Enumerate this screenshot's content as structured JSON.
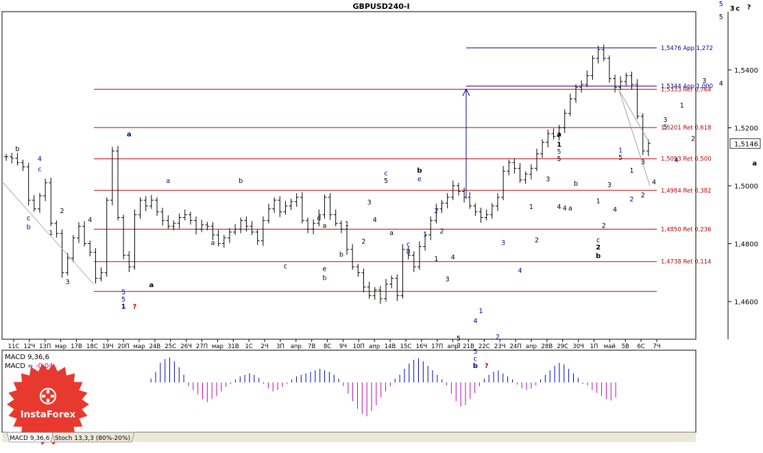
{
  "chart_data": {
    "type": "candlestick",
    "title": "GBPUSD240-I",
    "symbol": "GBPUSD",
    "timeframe": "H4",
    "ylim": [
      1.556,
      1.445
    ],
    "y_tick_labels": [
      "1,5400",
      "1,5200",
      "1,5000",
      "1,4800",
      "1,4600"
    ],
    "y_ticks": [
      1.54,
      1.52,
      1.5,
      1.48,
      1.46
    ],
    "current_price_label": "1,5146",
    "current_price": 1.5146,
    "x_tick_labels": [
      "11С",
      "12Ч",
      "13П",
      "мар",
      "17В",
      "18С",
      "19Ч",
      "20П",
      "мар",
      "24В",
      "25С",
      "26Ч",
      "27П",
      "мар",
      "31В",
      "1С",
      "2Ч",
      "3П",
      "апр",
      "7В",
      "8С",
      "9Ч",
      "10П",
      "апр",
      "14В",
      "15С",
      "16Ч",
      "17П",
      "апр",
      "21В",
      "22С",
      "23Ч",
      "24П",
      "апр",
      "28В",
      "29С",
      "30Ч",
      "1П",
      "май",
      "5В",
      "6С",
      "7Ч"
    ],
    "fibonacci_levels": [
      {
        "label": "1,5476 App 1,272",
        "price": 1.5476,
        "color": "#0000a0"
      },
      {
        "label": "1,5344 App 1,000",
        "price": 1.5344,
        "color": "#0000a0"
      },
      {
        "label": "1,5333 Ret 0,764",
        "price": 1.5333,
        "color": "#c00000"
      },
      {
        "label": "1,5201 Ret 0,618",
        "price": 1.5201,
        "color": "#c00000"
      },
      {
        "label": "1,5093 Ret 0,500",
        "price": 1.5093,
        "color": "#c00000"
      },
      {
        "label": "1,4984 Ret 0,382",
        "price": 1.4984,
        "color": "#c00000"
      },
      {
        "label": "1,4850 Ret 0,236",
        "price": 1.485,
        "color": "#c00000"
      },
      {
        "label": "1,4738 Ret 0,114",
        "price": 1.4738,
        "color": "#c00000"
      },
      {
        "price": 1.4635,
        "color": "#c00000"
      }
    ],
    "close_series": [
      1.51,
      1.5095,
      1.508,
      1.5065,
      1.495,
      1.492,
      1.4965,
      1.501,
      1.487,
      1.4835,
      1.47,
      1.475,
      1.482,
      1.486,
      1.48,
      1.477,
      1.468,
      1.47,
      1.495,
      1.512,
      1.489,
      1.476,
      1.472,
      1.49,
      1.495,
      1.493,
      1.495,
      1.491,
      1.488,
      1.486,
      1.487,
      1.489,
      1.49,
      1.488,
      1.485,
      1.4865,
      1.486,
      1.483,
      1.48,
      1.482,
      1.484,
      1.485,
      1.488,
      1.486,
      1.484,
      1.481,
      1.488,
      1.492,
      1.495,
      1.491,
      1.493,
      1.4945,
      1.496,
      1.488,
      1.485,
      1.487,
      1.49,
      1.496,
      1.49,
      1.487,
      1.485,
      1.478,
      1.472,
      1.47,
      1.465,
      1.462,
      1.464,
      1.461,
      1.466,
      1.468,
      1.462,
      1.478,
      1.476,
      1.472,
      1.479,
      1.483,
      1.488,
      1.492,
      1.494,
      1.496,
      1.5,
      1.498,
      1.496,
      1.493,
      1.491,
      1.489,
      1.49,
      1.493,
      1.496,
      1.505,
      1.508,
      1.506,
      1.502,
      1.504,
      1.506,
      1.511,
      1.515,
      1.518,
      1.517,
      1.52,
      1.525,
      1.53,
      1.534,
      1.535,
      1.538,
      1.544,
      1.547,
      1.544,
      1.537,
      1.534,
      1.536,
      1.538,
      1.535,
      1.524,
      1.512,
      1.5146
    ],
    "projection": [
      [
        1.5146,
        1.533,
        1.5
      ]
    ],
    "wave_labels": [
      {
        "text": "b",
        "color": "#000000",
        "price": 1.512,
        "bar": 2
      },
      {
        "text": "4",
        "color": "#0000a0",
        "price": 1.5085,
        "bar": 6
      },
      {
        "text": "c",
        "color": "#0000a0",
        "price": 1.505,
        "bar": 6
      },
      {
        "text": "c",
        "color": "#000000",
        "price": 1.488,
        "bar": 4
      },
      {
        "text": "b",
        "color": "#0000a0",
        "price": 1.485,
        "bar": 4
      },
      {
        "text": "1",
        "color": "#000000",
        "price": 1.483,
        "bar": 8
      },
      {
        "text": "2",
        "color": "#000000",
        "price": 1.4905,
        "bar": 10
      },
      {
        "text": "3",
        "color": "#000000",
        "price": 1.466,
        "bar": 11
      },
      {
        "text": "4",
        "color": "#000000",
        "price": 1.4875,
        "bar": 15
      },
      {
        "text": "a",
        "color": "#0000a0",
        "price": 1.517,
        "bar": 22,
        "bold": true
      },
      {
        "text": "5",
        "color": "#0000a0",
        "price": 1.4625,
        "bar": 21
      },
      {
        "text": "5",
        "color": "#0000a0",
        "price": 1.46,
        "bar": 21
      },
      {
        "text": "1",
        "color": "#0000a0",
        "price": 1.4575,
        "bar": 21,
        "bold": true
      },
      {
        "text": "?",
        "color": "#d00000",
        "price": 1.4575,
        "bar": 23,
        "bold": true
      },
      {
        "text": "a",
        "color": "#000000",
        "price": 1.465,
        "bar": 26,
        "bold": true
      },
      {
        "text": "a",
        "color": "#0000a0",
        "price": 1.501,
        "bar": 29
      },
      {
        "text": "b",
        "color": "#000000",
        "price": 1.501,
        "bar": 42
      },
      {
        "text": "a",
        "color": "#000000",
        "price": 1.4795,
        "bar": 37
      },
      {
        "text": "c",
        "color": "#000000",
        "price": 1.4715,
        "bar": 50
      },
      {
        "text": "d",
        "color": "#000000",
        "price": 1.488,
        "bar": 56
      },
      {
        "text": "a",
        "color": "#000000",
        "price": 1.4855,
        "bar": 57
      },
      {
        "text": "e",
        "color": "#000000",
        "price": 1.4705,
        "bar": 57
      },
      {
        "text": "b",
        "color": "#0000a0",
        "price": 1.4675,
        "bar": 57
      },
      {
        "text": "b",
        "color": "#000000",
        "price": 1.4755,
        "bar": 60
      },
      {
        "text": "1",
        "color": "#000000",
        "price": 1.486,
        "bar": 61
      },
      {
        "text": "2",
        "color": "#000000",
        "price": 1.48,
        "bar": 64
      },
      {
        "text": "3",
        "color": "#000000",
        "price": 1.4935,
        "bar": 65
      },
      {
        "text": "4",
        "color": "#000000",
        "price": 1.4875,
        "bar": 66
      },
      {
        "text": "c",
        "color": "#0000a0",
        "price": 1.5035,
        "bar": 68
      },
      {
        "text": "5",
        "color": "#000000",
        "price": 1.501,
        "bar": 68
      },
      {
        "text": "a",
        "color": "#000000",
        "price": 1.483,
        "bar": 69
      },
      {
        "text": "b",
        "color": "#000000",
        "price": 1.5045,
        "bar": 74,
        "bold": true
      },
      {
        "text": "e",
        "color": "#0000a0",
        "price": 1.5015,
        "bar": 74
      },
      {
        "text": "2",
        "color": "#0000a0",
        "price": 1.4905,
        "bar": 77
      },
      {
        "text": "1",
        "color": "#0000a0",
        "price": 1.4825,
        "bar": 75
      },
      {
        "text": "c",
        "color": "#0000a0",
        "price": 1.479,
        "bar": 72
      },
      {
        "text": "d",
        "color": "#0000a0",
        "price": 1.4765,
        "bar": 72
      },
      {
        "text": "2",
        "color": "#000000",
        "price": 1.4835,
        "bar": 78
      },
      {
        "text": "1",
        "color": "#000000",
        "price": 1.474,
        "bar": 77
      },
      {
        "text": "4",
        "color": "#000000",
        "price": 1.4745,
        "bar": 80
      },
      {
        "text": "3",
        "color": "#000000",
        "price": 1.467,
        "bar": 79
      },
      {
        "text": "1",
        "color": "#0000a0",
        "price": 1.456,
        "bar": 85
      },
      {
        "text": "4",
        "color": "#0000a0",
        "price": 1.4525,
        "bar": 84
      },
      {
        "text": "5",
        "color": "#000000",
        "price": 1.4465,
        "bar": 81
      },
      {
        "text": "3",
        "color": "#0000a0",
        "price": 1.444,
        "bar": 81
      },
      {
        "text": "5",
        "color": "#0000a0",
        "price": 1.442,
        "bar": 84
      },
      {
        "text": "c",
        "color": "#000000",
        "price": 1.4395,
        "bar": 84
      },
      {
        "text": "b",
        "color": "#0000a0",
        "price": 1.437,
        "bar": 84,
        "bold": true
      },
      {
        "text": "?",
        "color": "#d00000",
        "price": 1.437,
        "bar": 86,
        "bold": true
      },
      {
        "text": "2",
        "color": "#0000a0",
        "price": 1.447,
        "bar": 88
      },
      {
        "text": "3",
        "color": "#0000a0",
        "price": 1.4795,
        "bar": 89
      },
      {
        "text": "4",
        "color": "#0000a0",
        "price": 1.47,
        "bar": 92
      },
      {
        "text": "1",
        "color": "#000000",
        "price": 1.492,
        "bar": 94
      },
      {
        "text": "2",
        "color": "#000000",
        "price": 1.4805,
        "bar": 95
      },
      {
        "text": "3",
        "color": "#000000",
        "price": 1.5015,
        "bar": 97
      },
      {
        "text": "4",
        "color": "#000000",
        "price": 1.492,
        "bar": 99
      },
      {
        "text": "a",
        "color": "#000000",
        "price": 1.517,
        "bar": 99,
        "bold": true
      },
      {
        "text": "1",
        "color": "#000000",
        "price": 1.5135,
        "bar": 99,
        "bold": true
      },
      {
        "text": "5",
        "color": "#0000a0",
        "price": 1.511,
        "bar": 99
      },
      {
        "text": "5",
        "color": "#000000",
        "price": 1.5085,
        "bar": 99
      },
      {
        "text": "4",
        "color": "#000000",
        "price": 1.4915,
        "bar": 100
      },
      {
        "text": "a",
        "color": "#000000",
        "price": 1.4915,
        "bar": 101
      },
      {
        "text": "b",
        "color": "#000000",
        "price": 1.5,
        "bar": 102
      },
      {
        "text": "2",
        "color": "#000000",
        "price": 1.4855,
        "bar": 107
      },
      {
        "text": "c",
        "color": "#000000",
        "price": 1.4805,
        "bar": 106
      },
      {
        "text": "2",
        "color": "#000000",
        "price": 1.478,
        "bar": 106,
        "bold": true
      },
      {
        "text": "b",
        "color": "#000000",
        "price": 1.475,
        "bar": 106,
        "bold": true
      },
      {
        "text": "1",
        "color": "#000000",
        "price": 1.494,
        "bar": 106
      },
      {
        "text": "3",
        "color": "#000000",
        "price": 1.4995,
        "bar": 108
      },
      {
        "text": "4",
        "color": "#000000",
        "price": 1.491,
        "bar": 109
      },
      {
        "text": "1",
        "color": "#0000a0",
        "price": 1.5115,
        "bar": 110
      },
      {
        "text": "5",
        "color": "#000000",
        "price": 1.509,
        "bar": 110
      },
      {
        "text": "2",
        "color": "#000000",
        "price": 1.496,
        "bar": 114
      },
      {
        "text": "1",
        "color": "#000000",
        "price": 1.5045,
        "bar": 112
      },
      {
        "text": "3",
        "color": "#000000",
        "price": 1.5075,
        "bar": 114
      },
      {
        "text": "2",
        "color": "#0000a0",
        "price": 1.4945,
        "bar": 112
      },
      {
        "text": "4",
        "color": "#000000",
        "price": 1.5005,
        "bar": 116
      },
      {
        "text": "3",
        "color": "#0000a0",
        "price": 1.522,
        "bar": 118
      },
      {
        "text": "5",
        "color": "#000000",
        "price": 1.5195,
        "bar": 118
      },
      {
        "text": "4",
        "color": "#0000a0",
        "price": 1.508,
        "bar": 120
      },
      {
        "text": "1",
        "color": "#000000",
        "price": 1.527,
        "bar": 121
      },
      {
        "text": "2",
        "color": "#000000",
        "price": 1.5155,
        "bar": 123
      },
      {
        "text": "3",
        "color": "#000000",
        "price": 1.5355,
        "bar": 125
      },
      {
        "text": "4",
        "color": "#000000",
        "price": 1.5345,
        "bar": 128
      },
      {
        "text": "5",
        "color": "#0000a0",
        "price": 1.562,
        "bar": 128
      },
      {
        "text": "5",
        "color": "#000000",
        "price": 1.5575,
        "bar": 128
      },
      {
        "text": "3",
        "color": "#000000",
        "price": 1.5605,
        "bar": 130,
        "bold": true
      },
      {
        "text": "c",
        "color": "#000000",
        "price": 1.5605,
        "bar": 131,
        "bold": true
      },
      {
        "text": "?",
        "color": "#000000",
        "price": 1.561,
        "bar": 133,
        "bold": true
      },
      {
        "text": "a",
        "color": "#000000",
        "price": 1.507,
        "bar": 134,
        "bold": true
      }
    ],
    "indicators": [
      {
        "name": "MACD",
        "label": "MACD 9,36,6",
        "value_label": "MACD = ",
        "value": "-0,04",
        "positive_color": "#0000c0",
        "negative_color": "#c000c0",
        "histogram": [
          0.0,
          0.0,
          0.0,
          0.0,
          0.0,
          0.0,
          0.0,
          0.0,
          0.0,
          0.0,
          0.0,
          0.0,
          0.0,
          0.0,
          0.0,
          0.0,
          0.0,
          0.0,
          0.0,
          0.0,
          0.0,
          0.0,
          0.0,
          0.0,
          0.0,
          0.0,
          0.0,
          0.0,
          0.05,
          0.14,
          0.26,
          0.31,
          0.33,
          0.28,
          0.2,
          0.1,
          -0.05,
          -0.1,
          -0.16,
          -0.22,
          -0.26,
          -0.22,
          -0.18,
          -0.12,
          -0.06,
          -0.02,
          0.04,
          0.08,
          0.1,
          0.12,
          0.1,
          0.06,
          -0.02,
          -0.08,
          -0.12,
          -0.1,
          -0.06,
          -0.02,
          0.04,
          0.08,
          0.1,
          0.12,
          0.14,
          0.16,
          0.18,
          0.16,
          0.14,
          0.1,
          0.05,
          -0.05,
          -0.15,
          -0.25,
          -0.35,
          -0.42,
          -0.45,
          -0.38,
          -0.3,
          -0.2,
          -0.12,
          -0.05,
          0.05,
          0.1,
          0.18,
          0.25,
          0.3,
          0.32,
          0.28,
          0.22,
          0.16,
          0.1,
          0.04,
          -0.04,
          -0.15,
          -0.25,
          -0.32,
          -0.3,
          -0.22,
          -0.14,
          -0.05,
          0.05,
          0.1,
          0.14,
          0.16,
          0.12,
          0.08,
          0.04,
          -0.03,
          -0.08,
          -0.1,
          -0.08,
          -0.04,
          0.04,
          0.1,
          0.16,
          0.22,
          0.26,
          0.24,
          0.18,
          0.12,
          0.06,
          -0.02,
          -0.04,
          -0.1,
          -0.14,
          -0.18,
          -0.22,
          -0.24,
          -0.2,
          -0.12,
          -0.02,
          0.02,
          0.0,
          -0.04,
          -0.18,
          -0.3,
          -0.42,
          -0.55,
          -0.62
        ]
      },
      {
        "name": "Stoch",
        "label": "Stoch 13,3,3 (80%-20%)"
      }
    ]
  },
  "tabs": [
    {
      "label": "MACD 9,36,6"
    },
    {
      "label": "Stoch 13,3,3 (80%-20%)"
    }
  ],
  "brand": {
    "name": "InstaForex",
    "color": "#e8392e"
  }
}
